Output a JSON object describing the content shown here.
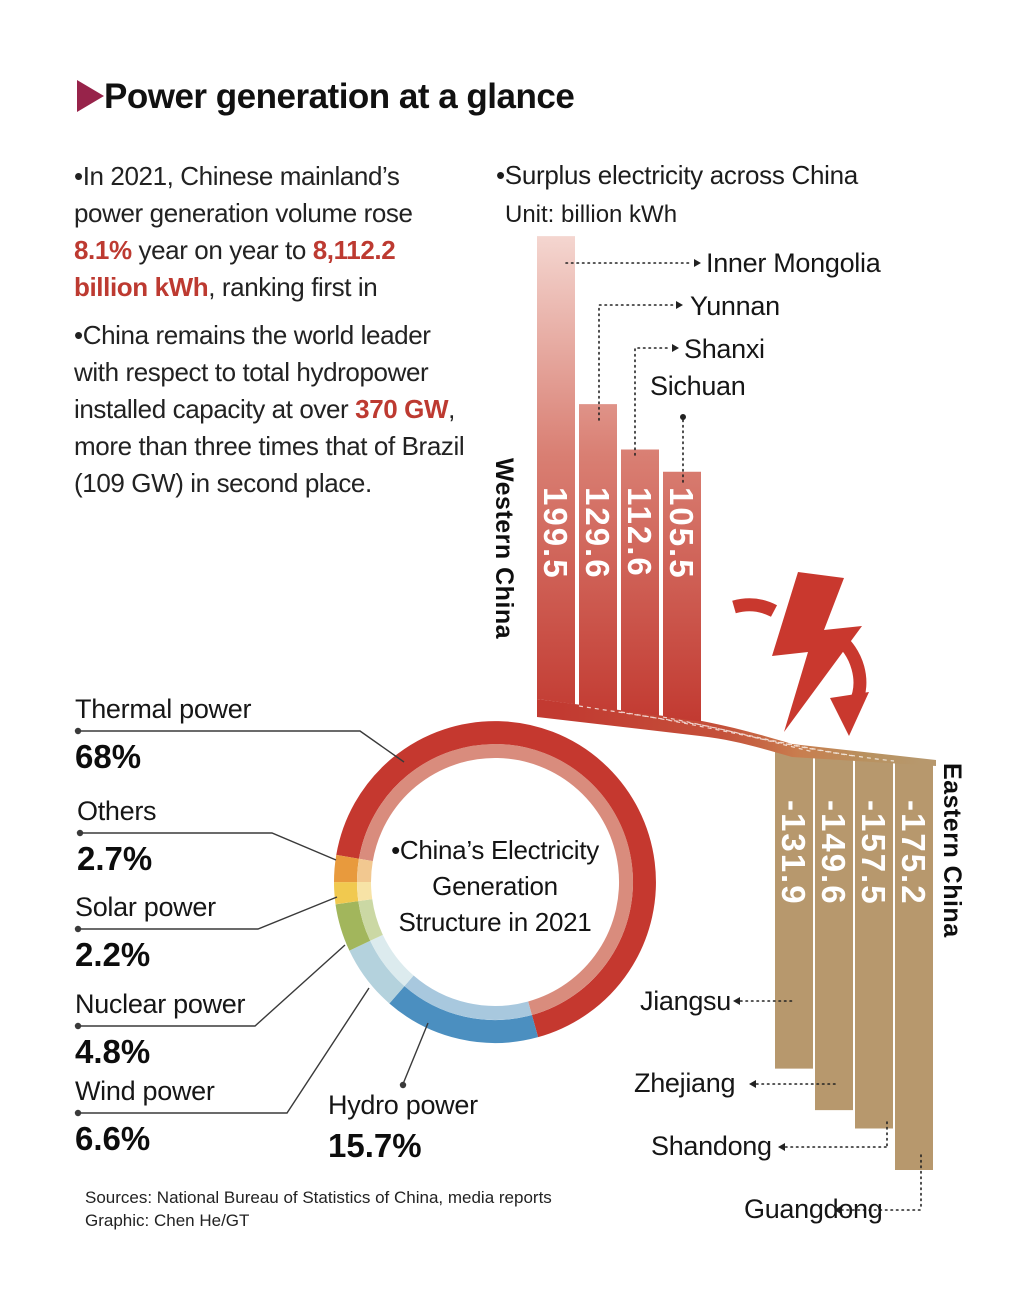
{
  "title": "Power generation at a glance",
  "intro": {
    "para1": [
      {
        "t": "•In 2021, Chinese mainland’s power generation volume rose "
      },
      {
        "t": "8.1%",
        "red": true
      },
      {
        "t": " year on year to "
      },
      {
        "t": "8,112.2 billion kWh",
        "red": true
      },
      {
        "t": ", ranking first in"
      }
    ],
    "para2": [
      {
        "t": "•China remains the world leader with respect to total hydropower installed capacity at over "
      },
      {
        "t": "370 GW",
        "red": true
      },
      {
        "t": ", more than three times that of Brazil (109 GW) in second place."
      }
    ]
  },
  "surplus": {
    "heading": "•Surplus electricity across China",
    "unit_label": "Unit: billion kWh",
    "west_group_label": "Western China",
    "east_group_label": "Eastern China"
  },
  "chart_data": [
    {
      "type": "bar",
      "title": "Surplus electricity across China (Western China)",
      "unit": "billion kWh",
      "categories": [
        "Inner Mongolia",
        "Yunnan",
        "Shanxi",
        "Sichuan"
      ],
      "values": [
        199.5,
        129.6,
        112.6,
        105.5
      ],
      "bar_color_top": "#f4d6d0",
      "bar_color_bottom": "#c23a31"
    },
    {
      "type": "bar",
      "title": "Surplus electricity across China (Eastern China)",
      "unit": "billion kWh",
      "categories": [
        "Jiangsu",
        "Zhejiang",
        "Shandong",
        "Guangdong"
      ],
      "values": [
        -131.9,
        -149.6,
        -157.5,
        -175.2
      ],
      "bar_color": "#b7986d"
    },
    {
      "type": "pie",
      "title": "China's Electricity Generation Structure in 2021",
      "center_text": "•China’s Electricity\nGeneration\nStructure in 2021",
      "slices": [
        {
          "label": "Thermal power",
          "pct": 68,
          "pct_label": "68%",
          "color": "#c5382f",
          "light": "#d98c7d"
        },
        {
          "label": "Others",
          "pct": 2.7,
          "pct_label": "2.7%",
          "color": "#e89a3d",
          "light": "#f2c890"
        },
        {
          "label": "Solar power",
          "pct": 2.2,
          "pct_label": "2.2%",
          "color": "#f1c94f",
          "light": "#f7e3a6"
        },
        {
          "label": "Nuclear power",
          "pct": 4.8,
          "pct_label": "4.8%",
          "color": "#a2b65c",
          "light": "#cbd8a4"
        },
        {
          "label": "Wind power",
          "pct": 6.6,
          "pct_label": "6.6%",
          "color": "#b4d2dd",
          "light": "#dcebee"
        },
        {
          "label": "Hydro power",
          "pct": 15.7,
          "pct_label": "15.7%",
          "color": "#4b8fc0",
          "light": "#a8c8de"
        }
      ]
    }
  ],
  "accents": {
    "title_arrow": "#97234a",
    "red_text": "#bd3a31",
    "bolt_red": "#c9382e",
    "tan": "#b7986d"
  },
  "sources": {
    "line1": "Sources: National Bureau of Statistics of China, media reports",
    "line2": "Graphic: Chen He/GT"
  }
}
